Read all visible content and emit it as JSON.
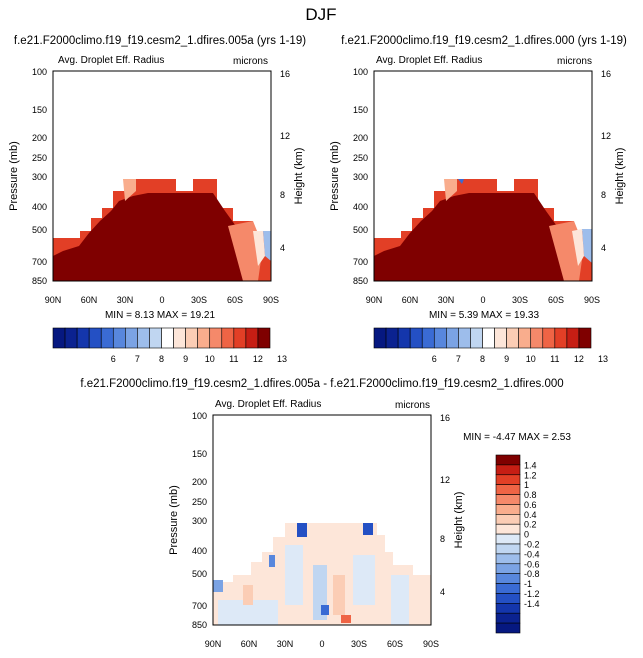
{
  "page_title": "DJF",
  "colors": {
    "pos": [
      "#ffffff",
      "#fde6d9",
      "#fbcdb5",
      "#f9ad8d",
      "#f5896a",
      "#ef6445",
      "#e23f26",
      "#c61e14",
      "#9b0b0b",
      "#7f0000"
    ],
    "neg": [
      "#ffffff",
      "#dde9f7",
      "#c0d6f1",
      "#9dbdeb",
      "#7ba3e4",
      "#5887dd",
      "#3a6bd4",
      "#2450c4",
      "#1436ac",
      "#0b2290",
      "#061880"
    ],
    "top_bar": [
      "#061880",
      "#0b2290",
      "#1436ac",
      "#2450c4",
      "#3a6bd4",
      "#5887dd",
      "#7ba3e4",
      "#9dbdeb",
      "#c0d6f1",
      "#ffffff",
      "#fde6d9",
      "#fbcdb5",
      "#f9ad8d",
      "#f5896a",
      "#ef6445",
      "#e23f26",
      "#c61e14",
      "#7f0000"
    ],
    "diff_bar": [
      "#061880",
      "#0b2290",
      "#1436ac",
      "#2450c4",
      "#3a6bd4",
      "#5887dd",
      "#7ba3e4",
      "#9dbdeb",
      "#c0d6f1",
      "#dde9f7",
      "#fde6d9",
      "#fbcdb5",
      "#f9ad8d",
      "#f5896a",
      "#ef6445",
      "#e23f26",
      "#c61e14",
      "#7f0000"
    ]
  },
  "panels": {
    "p1": {
      "title": "f.e21.F2000climo.f19_f19.cesm2_1.dfires.005a (yrs 1-19)",
      "left_label": "Avg. Droplet Eff. Radius",
      "right_label": "microns",
      "minmax": "MIN =  8.13   MAX =  19.21"
    },
    "p2": {
      "title": "f.e21.F2000climo.f19_f19.cesm2_1.dfires.000 (yrs 1-19)",
      "left_label": "Avg. Droplet Eff. Radius",
      "right_label": "microns",
      "minmax": "MIN =  5.39   MAX =  19.33"
    },
    "p3": {
      "title": "f.e21.F2000climo.f19_f19.cesm2_1.dfires.005a - f.e21.F2000climo.f19_f19.cesm2_1.dfires.000",
      "left_label": "Avg. Droplet Eff. Radius",
      "right_label": "microns",
      "minmax": "MIN = -4.47   MAX =  2.53"
    }
  },
  "top_colorbar_labels": [
    "6",
    "7",
    "8",
    "9",
    "10",
    "11",
    "12",
    "13"
  ],
  "diff_colorbar_labels": [
    "1.4",
    "1.2",
    "1",
    "0.8",
    "0.6",
    "0.4",
    "0.2",
    "0",
    "-0.2",
    "-0.4",
    "-0.6",
    "-0.8",
    "-1",
    "-1.2",
    "-1.4"
  ],
  "chart_data": [
    {
      "type": "heatmap",
      "title": "f.e21.F2000climo.f19_f19.cesm2_1.dfires.005a (yrs 1-19)",
      "variable": "Avg. Droplet Eff. Radius",
      "units": "microns",
      "xlabel": "",
      "ylabel": "Pressure (mb)",
      "y2label": "Height (km)",
      "x_ticks": [
        "90N",
        "60N",
        "30N",
        "0",
        "30S",
        "60S",
        "90S"
      ],
      "y_ticks": [
        "100",
        "150",
        "200",
        "250",
        "300",
        "400",
        "500",
        "700",
        "850"
      ],
      "y2_ticks": [
        "16",
        "12",
        "8",
        "4"
      ],
      "min": 8.13,
      "max": 19.21
    },
    {
      "type": "heatmap",
      "title": "f.e21.F2000climo.f19_f19.cesm2_1.dfires.000 (yrs 1-19)",
      "variable": "Avg. Droplet Eff. Radius",
      "units": "microns",
      "xlabel": "",
      "ylabel": "Pressure (mb)",
      "y2label": "Height (km)",
      "x_ticks": [
        "90N",
        "60N",
        "30N",
        "0",
        "30S",
        "60S",
        "90S"
      ],
      "y_ticks": [
        "100",
        "150",
        "200",
        "250",
        "300",
        "400",
        "500",
        "700",
        "850"
      ],
      "y2_ticks": [
        "16",
        "12",
        "8",
        "4"
      ],
      "min": 5.39,
      "max": 19.33
    },
    {
      "type": "heatmap",
      "title": "f.e21.F2000climo.f19_f19.cesm2_1.dfires.005a - f.e21.F2000climo.f19_f19.cesm2_1.dfires.000",
      "variable": "Avg. Droplet Eff. Radius",
      "units": "microns",
      "xlabel": "",
      "ylabel": "Pressure (mb)",
      "y2label": "Height (km)",
      "x_ticks": [
        "90N",
        "60N",
        "30N",
        "0",
        "30S",
        "60S",
        "90S"
      ],
      "y_ticks": [
        "100",
        "150",
        "200",
        "250",
        "300",
        "400",
        "500",
        "700",
        "850"
      ],
      "y2_ticks": [
        "16",
        "12",
        "8",
        "4"
      ],
      "min": -4.47,
      "max": 2.53
    }
  ]
}
